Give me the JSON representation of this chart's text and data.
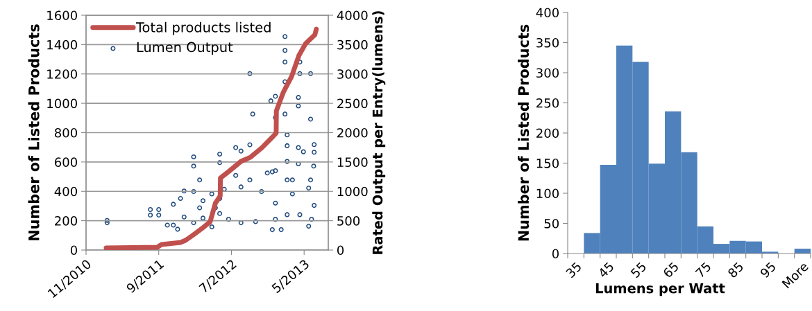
{
  "chart_data": [
    {
      "type": "line",
      "xlabel": null,
      "ylabel": "Number of Listed Products",
      "y2label": "Rated Output per Entry(lumens)",
      "xlim": [
        "2010-11-01",
        "2013-08-10"
      ],
      "xticks": [
        {
          "value": "2010-11-01",
          "label": "11/2010"
        },
        {
          "value": "2011-09-01",
          "label": "9/2011"
        },
        {
          "value": "2012-07-01",
          "label": "7/2012"
        },
        {
          "value": "2013-05-01",
          "label": "5/2013"
        }
      ],
      "ylim": [
        0,
        1600
      ],
      "yticks": [
        0,
        200,
        400,
        600,
        800,
        1000,
        1200,
        1400,
        1600
      ],
      "y2lim": [
        0,
        4000
      ],
      "y2ticks": [
        0,
        500,
        1000,
        1500,
        2000,
        2500,
        3000,
        3500,
        4000
      ],
      "grid": "y",
      "legend": "top left",
      "series": [
        {
          "name": "Total products listed",
          "type": "line",
          "color": "#c0504d",
          "marker": "none",
          "line_style": "solid",
          "x": [
            "2011-01-24",
            "2011-08-26",
            "2011-09-13",
            "2011-12-01",
            "2011-12-22",
            "2012-01-20",
            "2012-02-28",
            "2012-04-03",
            "2012-04-25",
            "2012-05-15",
            "2012-05-16",
            "2012-06-22",
            "2012-08-10",
            "2012-09-18",
            "2012-11-06",
            "2012-12-22",
            "2013-01-04",
            "2013-01-05",
            "2013-02-03",
            "2013-03-10",
            "2013-04-09",
            "2013-05-07",
            "2013-06-15",
            "2013-06-21"
          ],
          "values": [
            14,
            19,
            38,
            52,
            66,
            99,
            146,
            193,
            320,
            368,
            491,
            538,
            604,
            632,
            698,
            774,
            797,
            948,
            1075,
            1184,
            1325,
            1406,
            1467,
            1505
          ]
        },
        {
          "name": "Lumen Output",
          "type": "scatter",
          "axis": "y2",
          "color": "#1f497d",
          "marker": "circle",
          "x": [
            "2011-01-28",
            "2011-01-28",
            "2011-07-28",
            "2011-07-28",
            "2011-09-01",
            "2011-09-01",
            "2011-10-07",
            "2011-11-01",
            "2011-11-01",
            "2011-11-19",
            "2011-12-01",
            "2011-12-16",
            "2011-12-16",
            "2012-01-25",
            "2012-01-25",
            "2012-01-25",
            "2012-01-25",
            "2012-02-19",
            "2012-02-19",
            "2012-03-04",
            "2012-03-04",
            "2012-04-10",
            "2012-04-10",
            "2012-04-25",
            "2012-05-13",
            "2012-05-13",
            "2012-05-13",
            "2012-05-13",
            "2012-06-01",
            "2012-06-19",
            "2012-07-19",
            "2012-07-19",
            "2012-08-10",
            "2012-08-10",
            "2012-08-10",
            "2012-09-16",
            "2012-09-16",
            "2012-09-28",
            "2012-09-16",
            "2012-10-10",
            "2012-11-04",
            "2012-11-28",
            "2012-12-13",
            "2012-12-19",
            "2012-12-19",
            "2013-01-01",
            "2013-01-01",
            "2013-01-01",
            "2013-01-01",
            "2013-01-01",
            "2013-01-25",
            "2013-02-10",
            "2013-02-10",
            "2013-02-10",
            "2013-02-10",
            "2013-02-10",
            "2013-02-19",
            "2013-02-19",
            "2013-02-19",
            "2013-02-19",
            "2013-02-19",
            "2013-03-13",
            "2013-03-13",
            "2013-04-07",
            "2013-04-07",
            "2013-04-07",
            "2013-04-07",
            "2013-04-13",
            "2013-04-13",
            "2013-04-13",
            "2013-04-28",
            "2013-05-28",
            "2013-05-28",
            "2013-05-20",
            "2013-05-28",
            "2013-06-10",
            "2013-06-12",
            "2013-06-12",
            "2013-06-12",
            "2013-06-01",
            "2013-05-20"
          ],
          "values": [
            465,
            504,
            690,
            595,
            690,
            595,
            425,
            425,
            780,
            355,
            880,
            1005,
            563,
            1588,
            1430,
            465,
            997,
            1194,
            720,
            840,
            544,
            957,
            394,
            720,
            1635,
            1489,
            878,
            622,
            1036,
            524,
            1745,
            1272,
            1686,
            1075,
            465,
            1793,
            1194,
            2317,
            3006,
            485,
            997,
            1312,
            2541,
            1332,
            347,
            2620,
            2258,
            1351,
            800,
            524,
            347,
            3637,
            3400,
            3203,
            2868,
            2317,
            1962,
            1777,
            1509,
            1194,
            603,
            1194,
            957,
            2600,
            2455,
            1745,
            1470,
            3203,
            3006,
            603,
            1674,
            3006,
            2230,
            1056,
            1194,
            1430,
            1797,
            1667,
            760,
            524,
            406
          ]
        }
      ]
    },
    {
      "type": "bar",
      "xlabel": "Lumens per Watt",
      "ylabel": "Number of Listed Products",
      "categories": [
        "35",
        null,
        "45",
        null,
        "55",
        null,
        "65",
        null,
        "75",
        null,
        "85",
        null,
        "95",
        null,
        "More"
      ],
      "values": [
        0,
        34,
        147,
        345,
        318,
        149,
        236,
        168,
        45,
        16,
        21,
        20,
        3,
        0,
        8
      ],
      "color": "#4f81bd",
      "ylim": [
        0,
        400
      ],
      "yticks": [
        0,
        50,
        100,
        150,
        200,
        250,
        300,
        350,
        400
      ],
      "grid": false
    }
  ]
}
